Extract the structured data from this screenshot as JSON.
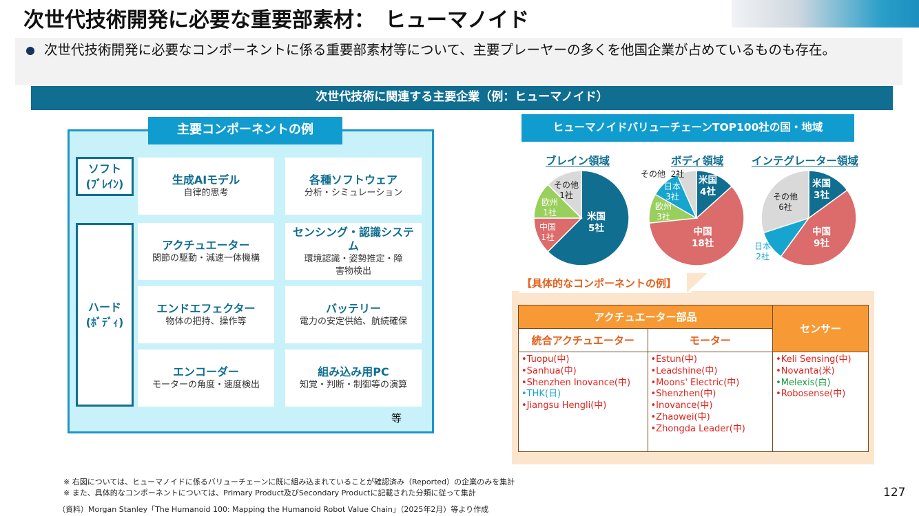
{
  "title": "次世代技術開発に必要な重要部素材：　ヒューマノイド",
  "bullet": "次世代技術開発に必要なコンポーネントに係る重要部素材等について、主要プレーヤーの多くを他国企業が占めているものも存在。",
  "banner": "次世代技術に関連する主要企業（例：ヒューマノイド）",
  "left": {
    "title": "主要コンポーネントの例",
    "soft_label_1": "ソフト",
    "soft_label_2": "(ﾌﾞﾚｲﾝ)",
    "hard_label_1": "ハード",
    "hard_label_2": "(ﾎﾞﾃﾞｨ)",
    "cards": [
      {
        "title": "生成AIモデル",
        "sub": "自律的思考"
      },
      {
        "title": "各種ソフトウェア",
        "sub": "分析・シミュレーション"
      },
      {
        "title": "アクチュエーター",
        "sub": "関節の駆動・減速一体機構"
      },
      {
        "title": "センシング・認識システム",
        "sub": "環境認識・姿勢推定・障害物検出"
      },
      {
        "title": "エンドエフェクター",
        "sub": "物体の把持、操作等"
      },
      {
        "title": "バッテリー",
        "sub": "電力の安定供給、航続確保"
      },
      {
        "title": "エンコーダー",
        "sub": "モーターの角度・速度検出"
      },
      {
        "title": "組み込み用PC",
        "sub": "知覚・判断・制御等の演算"
      }
    ],
    "etc": "等"
  },
  "value_chain": {
    "title": "ヒューマノイドバリューチェーンTOP100社の国・地域",
    "colors": {
      "us": "#106e91",
      "cn": "#dc6b6b",
      "eu": "#99cf5c",
      "jp": "#16a5cf",
      "other": "#d9d9d9"
    },
    "pies": [
      {
        "title": "ブレイン領域",
        "slices": [
          {
            "label": "米国",
            "count": "5社",
            "value": 5,
            "key": "us"
          },
          {
            "label": "中国",
            "count": "1社",
            "value": 1,
            "key": "cn"
          },
          {
            "label": "欧州",
            "count": "1社",
            "value": 1,
            "key": "eu"
          },
          {
            "label": "その他",
            "count": "1社",
            "value": 1,
            "key": "other"
          }
        ]
      },
      {
        "title": "ボディ領域",
        "slices": [
          {
            "label": "米国",
            "count": "4社",
            "value": 4,
            "key": "us"
          },
          {
            "label": "中国",
            "count": "18社",
            "value": 18,
            "key": "cn"
          },
          {
            "label": "欧州",
            "count": "3社",
            "value": 3,
            "key": "eu"
          },
          {
            "label": "日本",
            "count": "3社",
            "value": 3,
            "key": "jp"
          },
          {
            "label": "その他",
            "count": "2社",
            "value": 2,
            "key": "other"
          }
        ]
      },
      {
        "title": "インテグレーター領域",
        "slices": [
          {
            "label": "米国",
            "count": "3社",
            "value": 3,
            "key": "us"
          },
          {
            "label": "中国",
            "count": "9社",
            "value": 9,
            "key": "cn"
          },
          {
            "label": "日本",
            "count": "2社",
            "value": 2,
            "key": "jp"
          },
          {
            "label": "その他",
            "count": "6社",
            "value": 6,
            "key": "other"
          }
        ]
      }
    ]
  },
  "components": {
    "tab_label": "【具体的なコンポーネントの例】",
    "actuator_header": "アクチュエーター部品",
    "sensor_header": "センサー",
    "integrated_header": "統合アクチュエーター",
    "motor_header": "モーター",
    "integrated": [
      {
        "text": "•Tuopu(中)",
        "cls": "red"
      },
      {
        "text": "•Sanhua(中)",
        "cls": "red"
      },
      {
        "text": "•Shenzhen Inovance(中)",
        "cls": "red"
      },
      {
        "text": "•THK(日)",
        "cls": "cyan"
      },
      {
        "text": "•Jiangsu Hengli(中)",
        "cls": "red"
      }
    ],
    "motor": [
      {
        "text": "•Estun(中)",
        "cls": "red"
      },
      {
        "text": "•Leadshine(中)",
        "cls": "red"
      },
      {
        "text": "•Moons' Electric(中)",
        "cls": "red"
      },
      {
        "text": "•Shenzhen(中)",
        "cls": "red"
      },
      {
        "text": "•Inovance(中)",
        "cls": "red"
      },
      {
        "text": "•Zhaowei(中)",
        "cls": "red"
      },
      {
        "text": "•Zhongda Leader(中)",
        "cls": "red"
      }
    ],
    "sensor": [
      {
        "text": "•Keli Sensing(中)",
        "cls": "red"
      },
      {
        "text": "•Novanta(米)",
        "cls": "red"
      },
      {
        "text": "•Melexis(白)",
        "cls": "green"
      },
      {
        "text": "•Robosense(中)",
        "cls": "red"
      }
    ]
  },
  "notes": [
    "※ 右図については、ヒューマノイドに係るバリューチェーンに既に組み込まれていることが確認済み（Reported）の企業のみを集計",
    "※ また、具体的なコンポーネントについては、Primary Product及びSecondary Productに記載された分類に従って集計"
  ],
  "source": "（資料）Morgan Stanley「The Humanoid 100: Mapping the Humanoid Robot Value Chain」（2025年2月）等より作成",
  "page_number": "127"
}
